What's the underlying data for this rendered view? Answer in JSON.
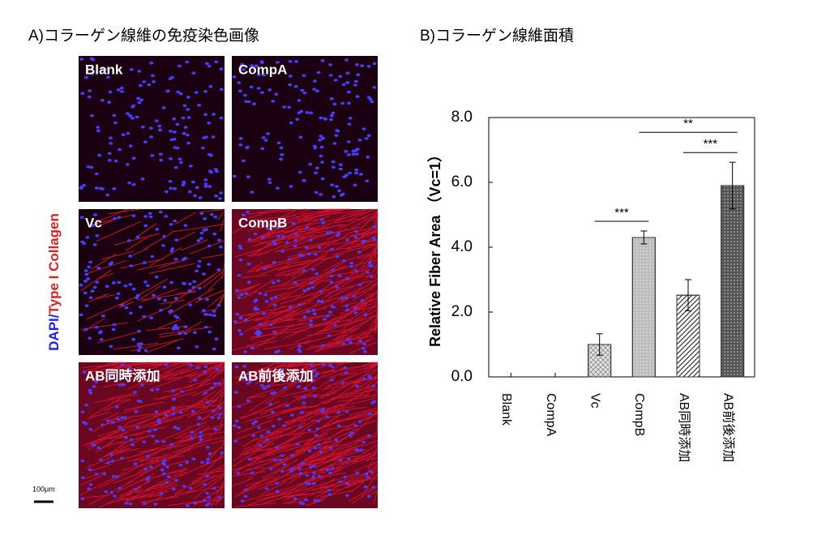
{
  "panel_a": {
    "title": "A)コラーゲン線維の免疫染色画像",
    "y_label": {
      "dapi": "DAPI",
      "separator": "/",
      "collagen": "Type I Collagen"
    },
    "images": [
      "Blank",
      "CompA",
      "Vc",
      "CompB",
      "AB同時添加",
      "AB前後添加"
    ],
    "scale_bar": "100μm"
  },
  "chart_data": {
    "type": "bar",
    "title": "B)コラーゲン線維面積",
    "y_label": "Relative Fiber Area （Vc=1）",
    "categories": [
      "Blank",
      "CompA",
      "Vc",
      "CompB",
      "AB同時添加",
      "AB前後添加"
    ],
    "values": [
      0,
      0,
      1.0,
      4.3,
      2.52,
      5.9
    ],
    "errors": [
      0,
      0,
      0.33,
      0.2,
      0.48,
      0.72
    ],
    "colors": [
      "#ffffff",
      "#ffffff",
      "#e6e6e6",
      "#bdbdbd",
      "#ffffff",
      "#555555"
    ],
    "patterns": [
      null,
      null,
      "cross",
      "dots",
      "diagonal",
      "dots"
    ],
    "ylim": [
      0,
      8
    ],
    "yticks": [
      {
        "value": 0,
        "label": "0.0"
      },
      {
        "value": 2,
        "label": "2.0"
      },
      {
        "value": 4,
        "label": "4.0"
      },
      {
        "value": 6,
        "label": "6.0"
      },
      {
        "value": 8,
        "label": "8.0"
      }
    ],
    "annotations": [
      {
        "label": "***",
        "between": [
          "Vc",
          "CompB"
        ]
      },
      {
        "label": "***",
        "between": [
          "AB同時添加",
          "AB前後添加"
        ]
      },
      {
        "label": "**",
        "between": [
          "CompB",
          "AB前後添加"
        ]
      }
    ]
  }
}
